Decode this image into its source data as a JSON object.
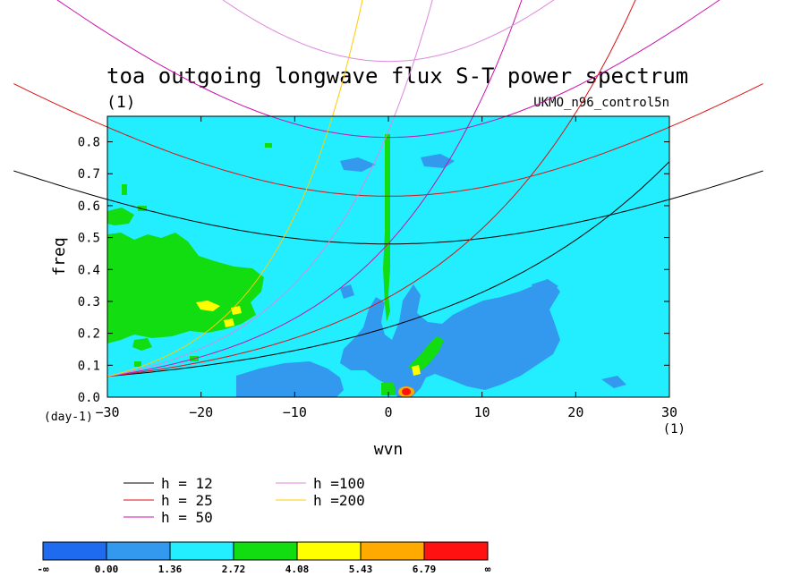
{
  "chart_data": {
    "type": "heatmap",
    "title": "toa outgoing longwave flux S-T power spectrum",
    "subtitle_left": "(1)",
    "subtitle_right": "UKMO_n96_control5n",
    "xlabel": "wvn",
    "ylabel": "freq",
    "x_unit": "(1)",
    "y_unit": "(day-1)",
    "xlim": [
      -30,
      30
    ],
    "ylim": [
      0.0,
      0.88
    ],
    "x_ticks": [
      -30,
      -20,
      -10,
      0,
      10,
      20,
      30
    ],
    "x_tick_labels": [
      "-30",
      "-20",
      "-10",
      "0",
      "10",
      "20",
      "30"
    ],
    "y_ticks": [
      0.0,
      0.1,
      0.2,
      0.3,
      0.4,
      0.5,
      0.6,
      0.7,
      0.8
    ],
    "y_tick_labels": [
      "0.0",
      "0.1",
      "0.2",
      "0.3",
      "0.4",
      "0.5",
      "0.6",
      "0.7",
      "0.8"
    ],
    "colorbar": {
      "boundaries": [
        "-∞",
        "0.00",
        "1.36",
        "2.72",
        "4.08",
        "5.43",
        "6.79",
        "∞"
      ],
      "colors": [
        "#1e6bf0",
        "#3399ee",
        "#22eeff",
        "#11dd11",
        "#ffff00",
        "#ffaa00",
        "#ff1111"
      ]
    },
    "dispersion_curves": [
      {
        "label": "h = 12",
        "h": 12,
        "color": "#000000"
      },
      {
        "label": "h = 25",
        "h": 25,
        "color": "#dd1111"
      },
      {
        "label": "h = 50",
        "h": 50,
        "color": "#cc11aa"
      },
      {
        "label": "h =100",
        "h": 100,
        "color": "#dd88dd"
      },
      {
        "label": "h =200",
        "h": 200,
        "color": "#ffcc00"
      }
    ],
    "regions": [
      {
        "level": "2.72-4.08",
        "desc": "westward low-wavenumber band",
        "wvn": [
          -30,
          -15
        ],
        "freq": [
          0.12,
          0.52
        ]
      },
      {
        "level": "4.08-5.43",
        "desc": "small patches",
        "wvn": [
          -21,
          -17
        ],
        "freq": [
          0.22,
          0.32
        ]
      },
      {
        "level": "0.00-1.36",
        "desc": "eastward low-freq region",
        "wvn": [
          -5,
          17
        ],
        "freq": [
          0.0,
          0.3
        ]
      },
      {
        "level": "6.79-inf",
        "desc": "peak near wvn 2",
        "wvn": [
          1.5,
          2.5
        ],
        "freq": [
          0.01,
          0.03
        ]
      }
    ]
  }
}
